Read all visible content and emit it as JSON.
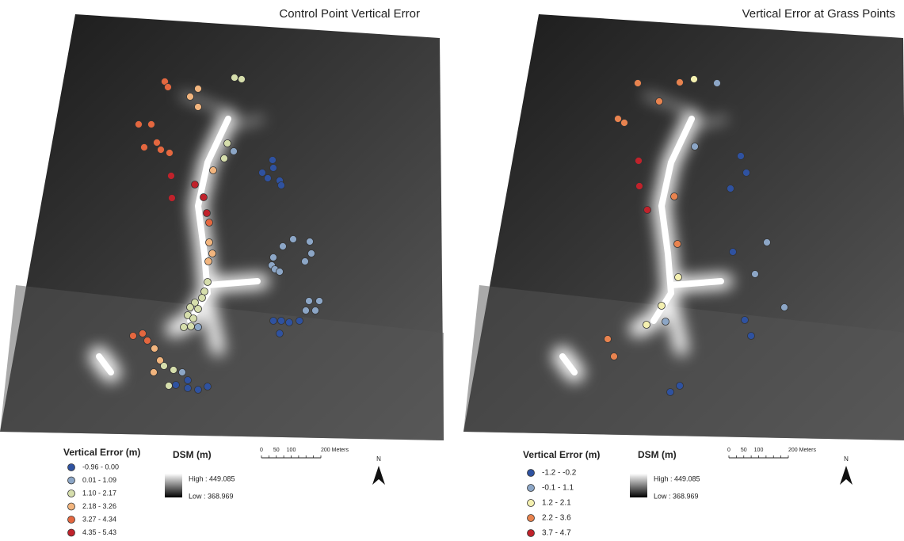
{
  "panels": [
    {
      "title": "Control Point Vertical Error",
      "legend": {
        "title": "Vertical Error (m)",
        "items": [
          {
            "label": "-0.96 - 0.00",
            "color": "#2f52a0"
          },
          {
            "label": "0.01 - 1.09",
            "color": "#8ca6c6"
          },
          {
            "label": "1.10 - 2.17",
            "color": "#d6deac"
          },
          {
            "label": "2.18 - 3.26",
            "color": "#f2b57e"
          },
          {
            "label": "3.27 - 4.34",
            "color": "#e4673f"
          },
          {
            "label": "4.35 - 5.43",
            "color": "#c0222b"
          }
        ]
      },
      "dsm": {
        "title": "DSM (m)",
        "high": "High : 449.085",
        "low": "Low : 368.969"
      },
      "scale": [
        "0",
        "50",
        "100",
        "200 Meters"
      ],
      "north": "N"
    },
    {
      "title": "Vertical Error at Grass Points",
      "legend": {
        "title": "Vertical Error (m)",
        "items": [
          {
            "label": "-1.2 - -0.2",
            "color": "#2f52a0"
          },
          {
            "label": "-0.1 - 1.1",
            "color": "#8ca6c6"
          },
          {
            "label": "1.2 - 2.1",
            "color": "#f4f0b0"
          },
          {
            "label": "2.2 - 3.6",
            "color": "#e8834f"
          },
          {
            "label": "3.7 - 4.7",
            "color": "#c0222b"
          }
        ]
      },
      "dsm": {
        "title": "DSM (m)",
        "high": "High : 449.085",
        "low": "Low : 368.969"
      },
      "scale": [
        "0",
        "50",
        "100",
        "200 Meters"
      ],
      "north": "N"
    }
  ]
}
